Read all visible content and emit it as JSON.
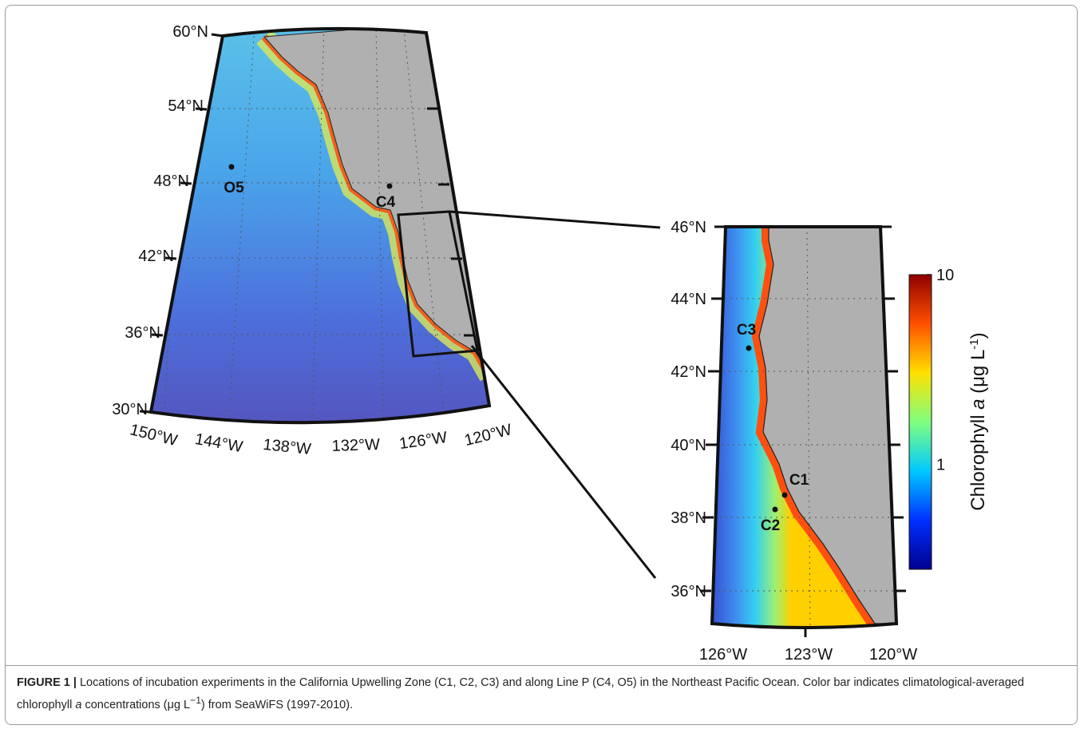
{
  "left_map": {
    "lat_labels": [
      "60°N",
      "54°N",
      "48°N",
      "42°N",
      "36°N",
      "30°N"
    ],
    "lon_labels": [
      "150°W",
      "144°W",
      "138°W",
      "132°W",
      "126°W",
      "120°W"
    ],
    "stations": [
      "O5",
      "C4"
    ]
  },
  "right_map": {
    "lat_labels": [
      "46°N",
      "44°N",
      "42°N",
      "40°N",
      "38°N",
      "36°N"
    ],
    "lon_labels": [
      "126°W",
      "123°W",
      "120°W"
    ],
    "stations": [
      "C3",
      "C1",
      "C2"
    ]
  },
  "colorbar": {
    "scale": "log",
    "lim": [
      0.28,
      10
    ],
    "ticks": [
      1,
      10
    ],
    "colors": [
      "#00008f",
      "#0030ff",
      "#00c8ff",
      "#7fff7f",
      "#ffe000",
      "#ff5000",
      "#8f0000"
    ],
    "label": {
      "text": "Chlorophyll ",
      "italic": "a",
      "unit": " (μg L",
      "exponent": "-1",
      "close": ")"
    }
  },
  "caption": {
    "label": "FIGURE 1 |",
    "text1": " Locations of incubation experiments in the California Upwelling Zone (C1, C2, C3) and along Line P (C4, O5) in the Northeast Pacific Ocean. Color bar indicates climatological-averaged chlorophyll ",
    "italic": "a",
    "text2": " concentrations (μg L",
    "sup": "−1",
    "text3": ") from SeaWiFS (1997-2010)."
  }
}
